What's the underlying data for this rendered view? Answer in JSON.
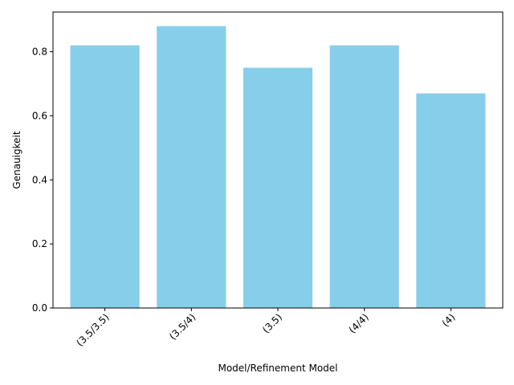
{
  "chart_data": {
    "type": "bar",
    "categories": [
      "(3.5/3.5)",
      "(3.5/4)",
      "(3.5)",
      "(4/4)",
      "(4)"
    ],
    "values": [
      0.82,
      0.88,
      0.75,
      0.82,
      0.67
    ],
    "xlabel": "Model/Refinement Model",
    "ylabel": "Genauigkeit",
    "ylim": [
      0,
      0.924
    ],
    "yticks": [
      0.0,
      0.2,
      0.4,
      0.6,
      0.8
    ],
    "ytick_labels": [
      "0.0",
      "0.2",
      "0.4",
      "0.6",
      "0.8"
    ],
    "xtick_rotation_deg": 45,
    "grid": false,
    "legend": "none",
    "bar_color": "#87ceeb"
  }
}
